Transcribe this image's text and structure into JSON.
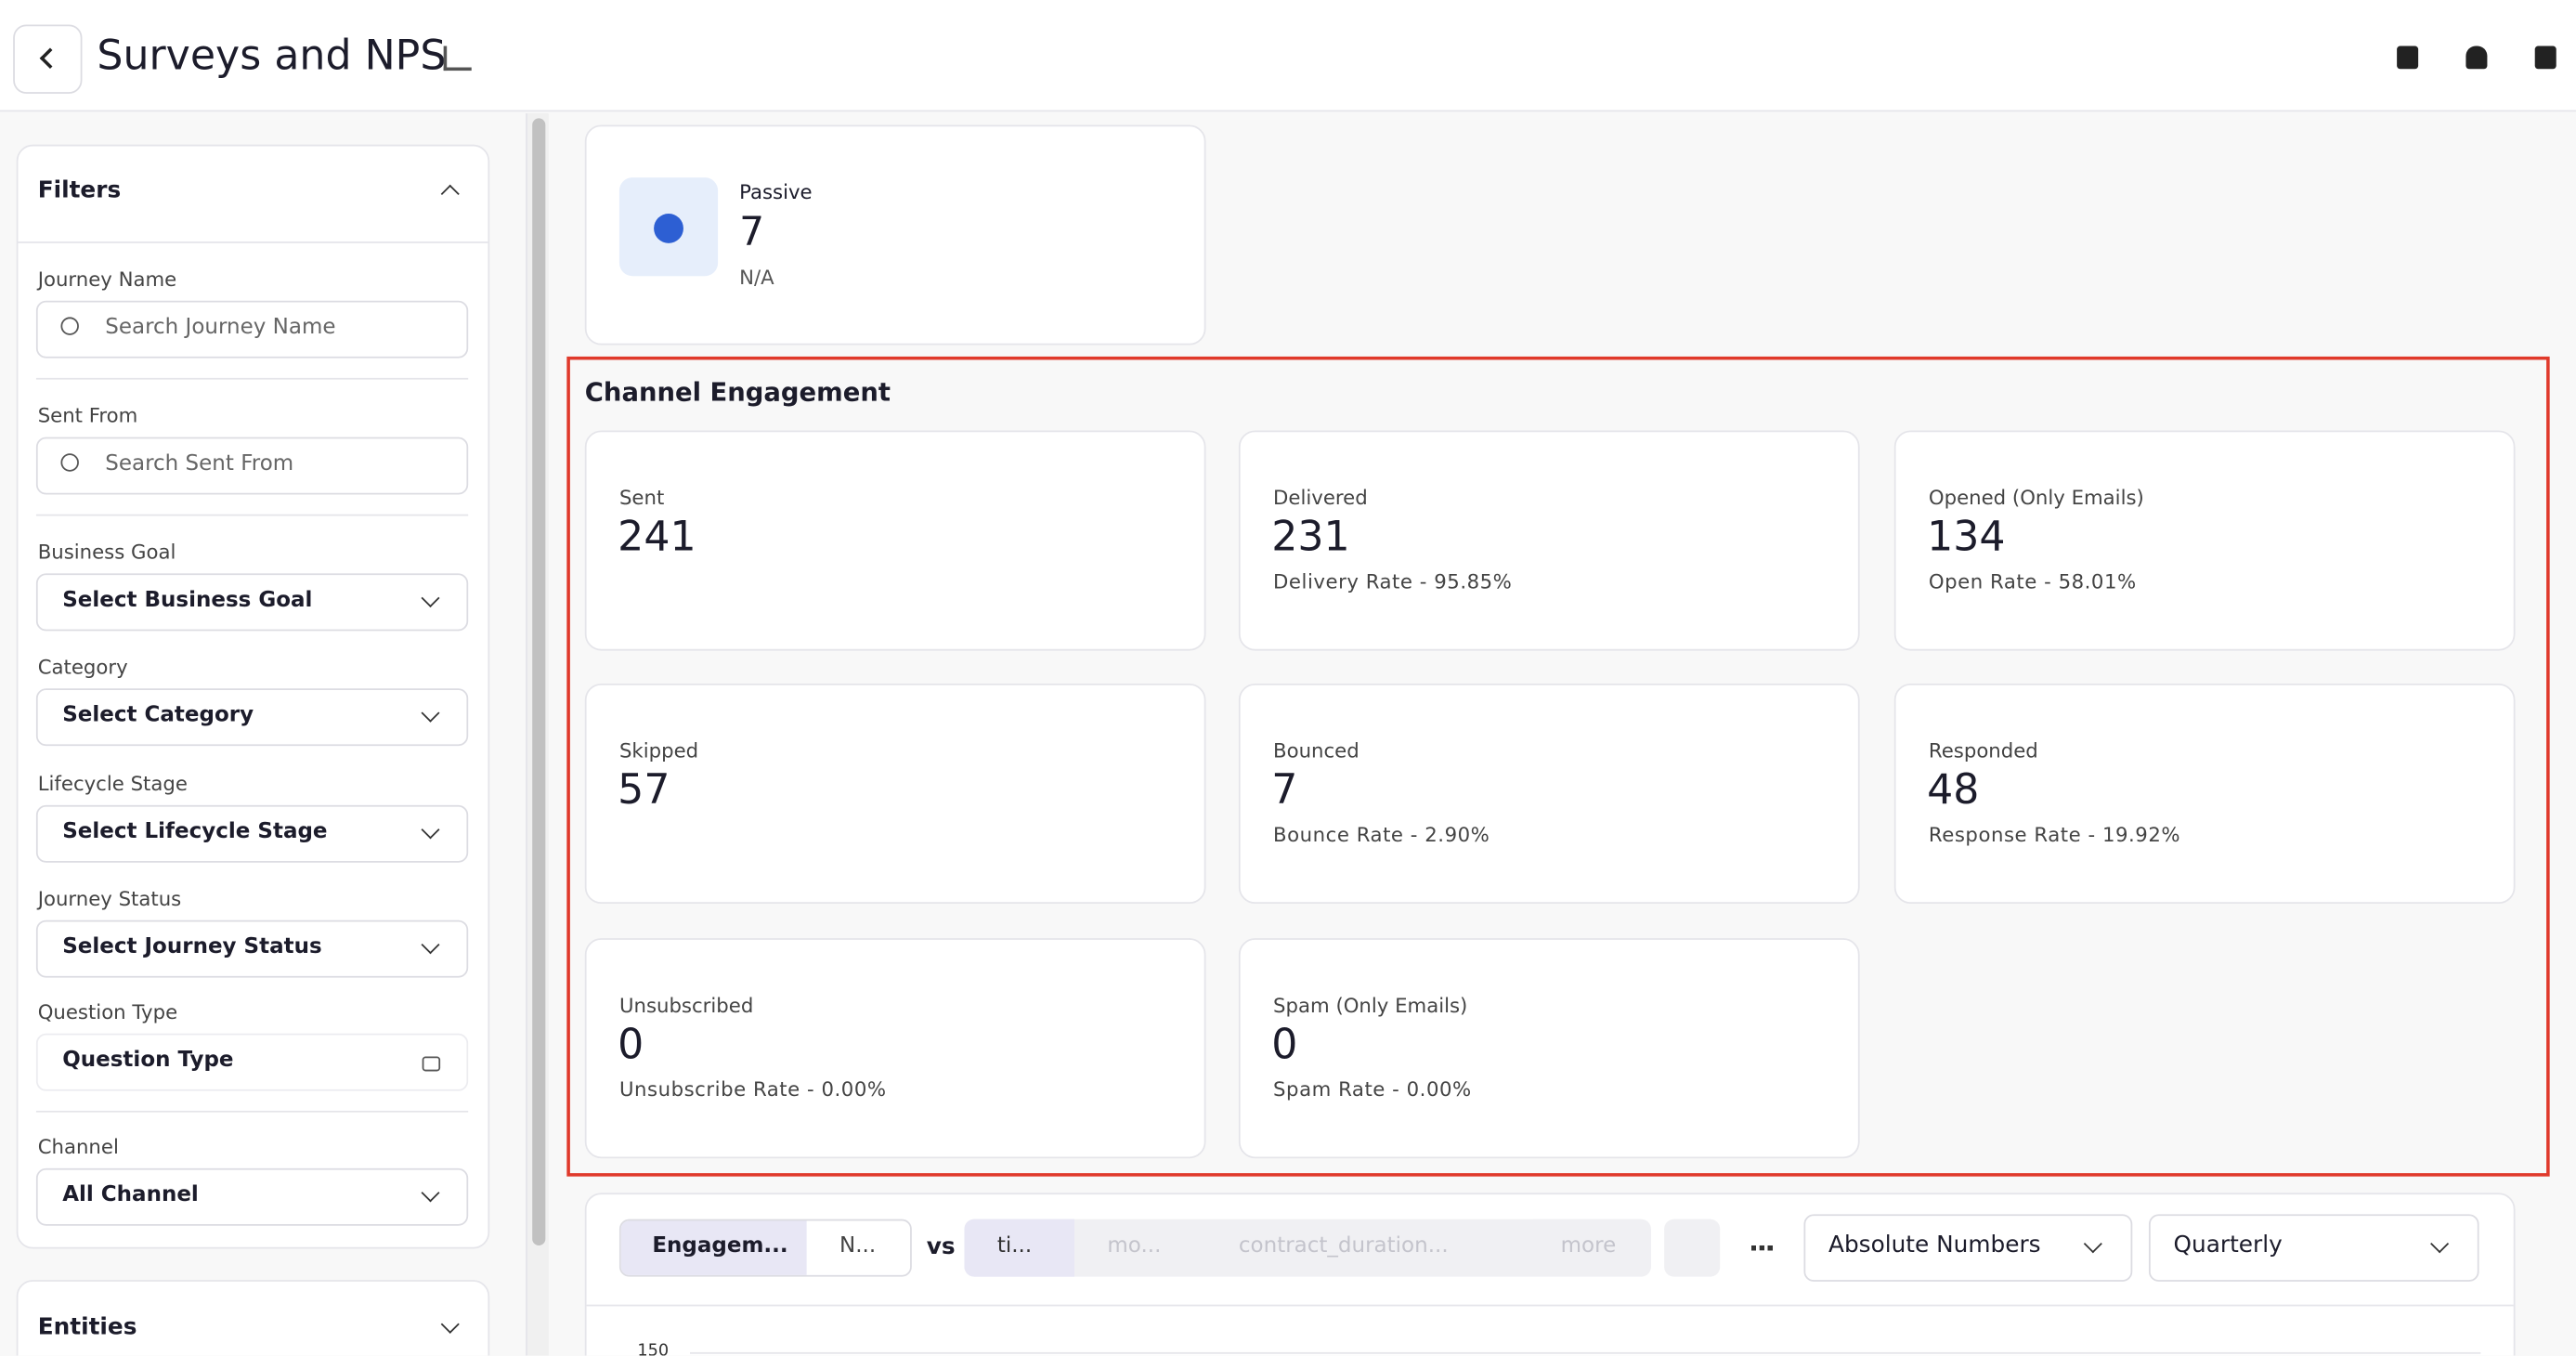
{
  "header": {
    "title": "Surveys and NPS"
  },
  "filters": {
    "title": "Filters",
    "fields": [
      {
        "label": "Journey Name",
        "placeholder": "Search Journey Name"
      },
      {
        "label": "Sent From",
        "placeholder": "Search Sent From"
      },
      {
        "label": "Business Goal",
        "value": "Select Business Goal"
      },
      {
        "label": "Category",
        "value": "Select Category"
      },
      {
        "label": "Lifecycle Stage",
        "value": "Select Lifecycle Stage"
      },
      {
        "label": "Journey Status",
        "value": "Select Journey Status"
      },
      {
        "label": "Question Type",
        "value": "Question Type",
        "locked": true
      },
      {
        "label": "Channel",
        "value": "All Channel"
      }
    ]
  },
  "entities": {
    "title": "Entities"
  },
  "passive": {
    "label": "Passive",
    "value": 7,
    "sub": "N/A"
  },
  "channel_engagement": {
    "title": "Channel Engagement",
    "cards": [
      {
        "label": "Sent",
        "value": 241
      },
      {
        "label": "Delivered",
        "value": 231,
        "sub": "Delivery Rate - 95.85%"
      },
      {
        "label": "Opened (Only Emails)",
        "value": 134,
        "sub": "Open Rate - 58.01%"
      },
      {
        "label": "Skipped",
        "value": 57
      },
      {
        "label": "Bounced",
        "value": 7,
        "sub": "Bounce Rate - 2.90%"
      },
      {
        "label": "Responded",
        "value": 48,
        "sub": "Response Rate - 19.92%"
      },
      {
        "label": "Unsubscribed",
        "value": 0,
        "sub": "Unsubscribe Rate - 0.00%"
      },
      {
        "label": "Spam (Only Emails)",
        "value": 0,
        "sub": "Spam Rate - 0.00%"
      }
    ]
  },
  "toolbar": {
    "tabs_a": [
      "Engagem...",
      "N..."
    ],
    "vs": "vs",
    "tabs_b": [
      "ti...",
      "mo...",
      "contract_duration...",
      "more"
    ],
    "dropdowns": [
      "Absolute Numbers",
      "Quarterly"
    ],
    "y_tick": "150"
  }
}
